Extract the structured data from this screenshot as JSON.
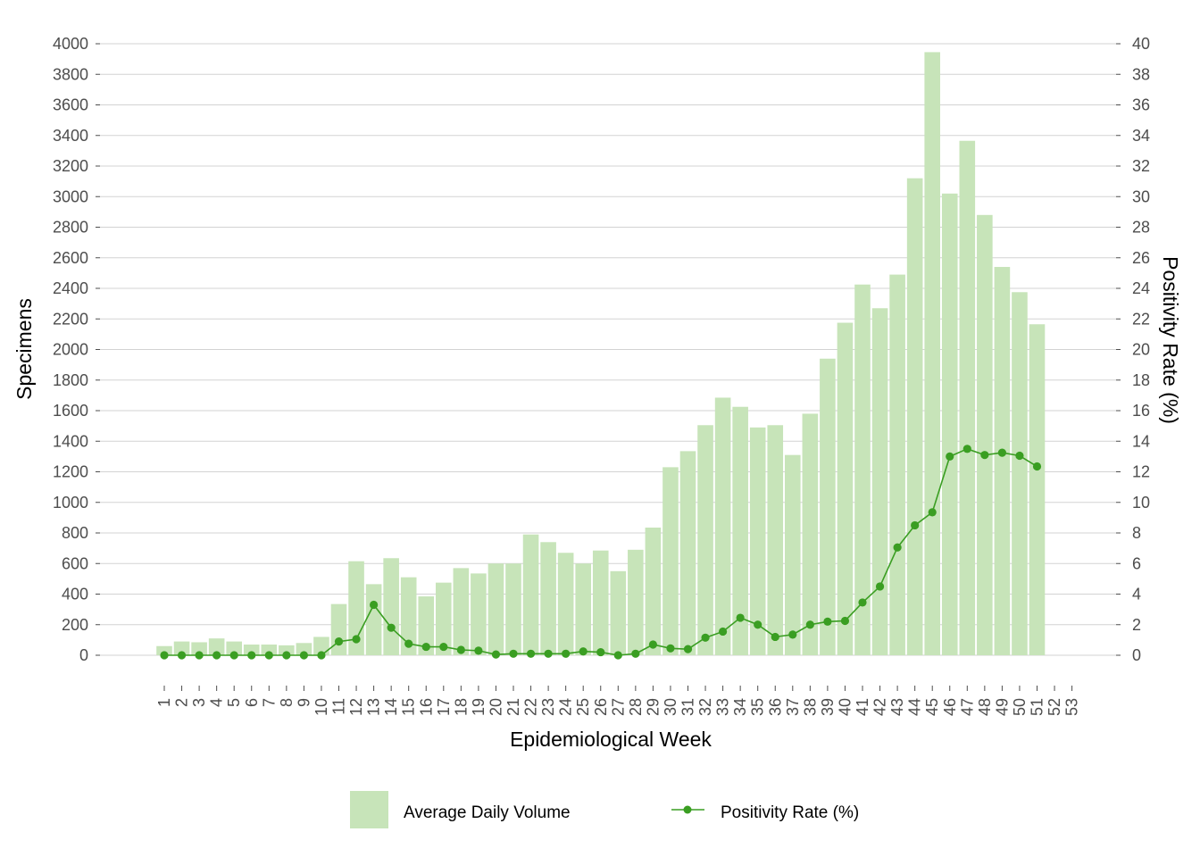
{
  "chart_data": {
    "type": "bar+line",
    "xlabel": "Epidemiological Week",
    "ylabel_left": "Specimens",
    "ylabel_right": "Positivity Rate (%)",
    "x_ticks": [
      "1",
      "2",
      "3",
      "4",
      "5",
      "6",
      "7",
      "8",
      "9",
      "10",
      "11",
      "12",
      "13",
      "14",
      "15",
      "16",
      "17",
      "18",
      "19",
      "20",
      "21",
      "22",
      "23",
      "24",
      "25",
      "26",
      "27",
      "28",
      "29",
      "30",
      "31",
      "32",
      "33",
      "34",
      "35",
      "36",
      "37",
      "38",
      "39",
      "40",
      "41",
      "42",
      "43",
      "44",
      "45",
      "46",
      "47",
      "48",
      "49",
      "50",
      "51",
      "52",
      "53"
    ],
    "y_left_ticks": [
      "0",
      "200",
      "400",
      "600",
      "800",
      "1000",
      "1200",
      "1400",
      "1600",
      "1800",
      "2000",
      "2200",
      "2400",
      "2600",
      "2800",
      "3000",
      "3200",
      "3400",
      "3600",
      "3800",
      "4000"
    ],
    "y_right_ticks": [
      "0",
      "2",
      "4",
      "6",
      "8",
      "10",
      "12",
      "14",
      "16",
      "18",
      "20",
      "22",
      "24",
      "26",
      "28",
      "30",
      "32",
      "34",
      "36",
      "38",
      "40"
    ],
    "ylim_left": [
      0,
      4000
    ],
    "ylim_right": [
      0,
      40
    ],
    "grid": "horizontal",
    "legend_position": "bottom",
    "series": [
      {
        "name": "Average Daily Volume",
        "kind": "bar",
        "axis": "left",
        "color": "#c7e4b9",
        "weeks": [
          1,
          2,
          3,
          4,
          5,
          6,
          7,
          8,
          9,
          10,
          11,
          12,
          13,
          14,
          15,
          16,
          17,
          18,
          19,
          20,
          21,
          22,
          23,
          24,
          25,
          26,
          27,
          28,
          29,
          30,
          31,
          32,
          33,
          34,
          35,
          36,
          37,
          38,
          39,
          40,
          41,
          42,
          43,
          44,
          45,
          46,
          47,
          48,
          49,
          50,
          51
        ],
        "values": [
          60,
          90,
          85,
          110,
          90,
          70,
          70,
          65,
          80,
          120,
          335,
          615,
          465,
          635,
          510,
          385,
          475,
          570,
          535,
          600,
          600,
          790,
          740,
          670,
          600,
          685,
          550,
          690,
          835,
          1230,
          1335,
          1505,
          1685,
          1625,
          1490,
          1505,
          1310,
          1580,
          1940,
          2175,
          2425,
          2270,
          2490,
          3120,
          3945,
          3020,
          3365,
          2880,
          2540,
          2375,
          2165
        ]
      },
      {
        "name": "Positivity Rate (%)",
        "kind": "line",
        "axis": "right",
        "color": "#3a9e22",
        "weeks": [
          1,
          2,
          3,
          4,
          5,
          6,
          7,
          8,
          9,
          10,
          11,
          12,
          13,
          14,
          15,
          16,
          17,
          18,
          19,
          20,
          21,
          22,
          23,
          24,
          25,
          26,
          27,
          28,
          29,
          30,
          31,
          32,
          33,
          34,
          35,
          36,
          37,
          38,
          39,
          40,
          41,
          42,
          43,
          44,
          45,
          46,
          47,
          48,
          49,
          50,
          51
        ],
        "values": [
          0,
          0,
          0,
          0,
          0,
          0,
          0,
          0,
          0,
          0,
          0.9,
          1.05,
          3.3,
          1.8,
          0.75,
          0.55,
          0.55,
          0.35,
          0.3,
          0.05,
          0.1,
          0.1,
          0.1,
          0.1,
          0.25,
          0.2,
          0,
          0.1,
          0.7,
          0.45,
          0.4,
          1.15,
          1.55,
          2.45,
          2.0,
          1.2,
          1.35,
          2.0,
          2.2,
          2.25,
          3.45,
          4.5,
          7.05,
          8.5,
          9.35,
          13.0,
          13.5,
          13.1,
          13.25,
          13.05,
          12.35
        ]
      }
    ]
  }
}
